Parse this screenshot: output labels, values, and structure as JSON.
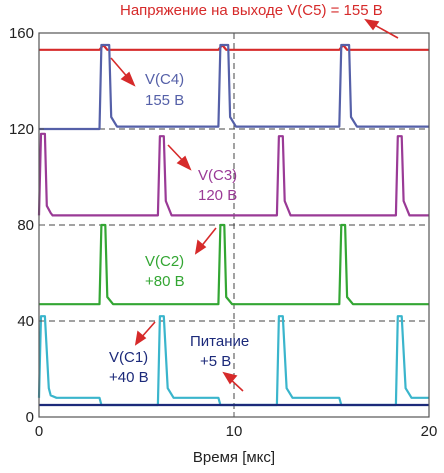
{
  "chart_data": {
    "type": "line",
    "title": "",
    "xlabel": "Время [мкс]",
    "ylabel": "",
    "xlim": [
      0,
      20
    ],
    "ylim": [
      0,
      160
    ],
    "x_ticks": [
      "0",
      "10",
      "20"
    ],
    "y_ticks": [
      "0",
      "40",
      "80",
      "120",
      "160"
    ],
    "grid": "dashed lines at x = 10 and y = 40, 80, 120",
    "colors": {
      "V(C5)": "#d62a2a",
      "V(C4)": "#5560a8",
      "V(C3)": "#9a3a96",
      "V(C2)": "#33a633",
      "V(C1)": "#3ab5cc",
      "Питание": "#1c2a7a",
      "arrow": "#d62a2a",
      "grid": "#444444"
    },
    "series": [
      {
        "name": "V(C5)",
        "x": [
          0,
          3.1,
          3.3,
          3.5,
          9.2,
          9.4,
          9.6,
          15.4,
          15.6,
          15.8,
          20
        ],
        "y": [
          153,
          153,
          155,
          153,
          153,
          155,
          153,
          153,
          155,
          153,
          153
        ]
      },
      {
        "name": "V(C4)",
        "x": [
          0,
          3.1,
          3.2,
          3.3,
          3.6,
          3.7,
          4.0,
          9.2,
          9.3,
          9.4,
          9.7,
          9.8,
          10.1,
          15.4,
          15.5,
          15.6,
          15.9,
          16.0,
          16.3,
          20
        ],
        "y": [
          120,
          120,
          155,
          155,
          155,
          125,
          121,
          121,
          155,
          155,
          155,
          125,
          121,
          121,
          155,
          155,
          155,
          125,
          121,
          121
        ]
      },
      {
        "name": "V(C3)",
        "x": [
          0,
          0.1,
          0.3,
          0.4,
          0.6,
          0.7,
          3.1,
          3.1,
          6.1,
          6.2,
          6.4,
          6.5,
          6.8,
          9.2,
          9.2,
          12.2,
          12.3,
          12.5,
          12.6,
          12.9,
          15.4,
          15.4,
          18.3,
          18.4,
          18.6,
          18.7,
          19.0,
          20
        ],
        "y": [
          84,
          118,
          118,
          88,
          85,
          84,
          84,
          84,
          84,
          117,
          117,
          90,
          84,
          84,
          84,
          84,
          117,
          117,
          90,
          84,
          84,
          84,
          84,
          117,
          117,
          90,
          84,
          84
        ]
      },
      {
        "name": "V(C2)",
        "x": [
          0,
          3.1,
          3.2,
          3.4,
          3.5,
          3.8,
          6.1,
          6.2,
          6.4,
          6.5,
          6.8,
          9.2,
          9.3,
          9.5,
          9.6,
          9.9,
          12.2,
          12.3,
          12.5,
          12.6,
          12.9,
          15.4,
          15.5,
          15.7,
          15.8,
          16.1,
          18.3,
          18.4,
          18.6,
          18.7,
          19.0,
          20
        ],
        "y": [
          47,
          47,
          80,
          80,
          50,
          47,
          47,
          47,
          47,
          47,
          47,
          47,
          80,
          80,
          50,
          47,
          47,
          47,
          47,
          47,
          47,
          47,
          80,
          80,
          50,
          47,
          47,
          47,
          47,
          47,
          47,
          47
        ]
      },
      {
        "name": "V(C1)",
        "x": [
          0,
          0.1,
          0.3,
          0.5,
          0.6,
          0.9,
          3.1,
          3.2,
          6.1,
          6.2,
          6.4,
          6.6,
          6.9,
          9.2,
          9.3,
          12.2,
          12.3,
          12.5,
          12.7,
          13.0,
          15.4,
          15.5,
          18.3,
          18.4,
          18.6,
          18.8,
          19.1,
          20
        ],
        "y": [
          8,
          42,
          42,
          12,
          9,
          8,
          8,
          5,
          5,
          42,
          42,
          12,
          8,
          8,
          5,
          5,
          42,
          42,
          12,
          8,
          8,
          5,
          5,
          42,
          42,
          12,
          8,
          8
        ]
      },
      {
        "name": "Питание",
        "x": [
          0,
          20
        ],
        "y": [
          5,
          5
        ]
      }
    ],
    "annotations": [
      {
        "text": "Напряжение на выходе V(C5) = 155 В"
      },
      {
        "text": "V(C4)\n155 В"
      },
      {
        "text": "V(C3)\n120 В"
      },
      {
        "text": "V(C2)\n+80 В"
      },
      {
        "text": "V(C1)\n+40 В"
      },
      {
        "text": "Питание\n+5 В"
      }
    ]
  },
  "labels": {
    "title_top": "Напряжение на выходе V(C5) = 155 В",
    "c4_name": "V(C4)",
    "c4_value": "155 В",
    "c3_name": "V(C3)",
    "c3_value": "120 В",
    "c2_name": "V(C2)",
    "c2_value": "+80 В",
    "c1_name": "V(C1)",
    "c1_value": "+40 В",
    "supply_name": "Питание",
    "supply_value": "+5 В"
  }
}
